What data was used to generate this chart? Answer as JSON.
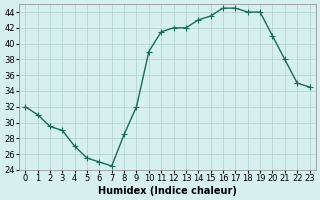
{
  "x": [
    0,
    1,
    2,
    3,
    4,
    5,
    6,
    7,
    8,
    9,
    10,
    11,
    12,
    13,
    14,
    15,
    16,
    17,
    18,
    19,
    20,
    21,
    22,
    23
  ],
  "y": [
    32,
    31,
    29.5,
    29,
    27,
    25.5,
    25,
    24.5,
    28.5,
    32,
    39,
    41.5,
    42,
    42,
    43,
    43.5,
    44.5,
    44.5,
    44,
    44,
    41,
    38,
    35,
    34.5
  ],
  "xlabel": "Humidex (Indice chaleur)",
  "xlim": [
    -0.5,
    23.5
  ],
  "ylim": [
    24,
    45
  ],
  "yticks": [
    24,
    26,
    28,
    30,
    32,
    34,
    36,
    38,
    40,
    42,
    44
  ],
  "xticks": [
    0,
    1,
    2,
    3,
    4,
    5,
    6,
    7,
    8,
    9,
    10,
    11,
    12,
    13,
    14,
    15,
    16,
    17,
    18,
    19,
    20,
    21,
    22,
    23
  ],
  "line_color": "#1a6b5a",
  "marker": "+",
  "bg_color": "#d6efef",
  "grid_color": "#b0cece",
  "label_fontsize": 7,
  "tick_fontsize": 6
}
